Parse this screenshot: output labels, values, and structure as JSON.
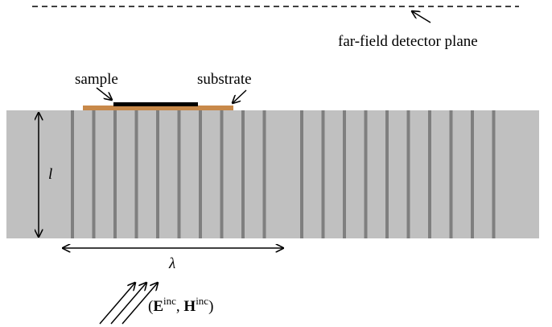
{
  "labels": {
    "detector": "far-field detector plane",
    "sample": "sample",
    "substrate": "substrate",
    "thickness": "l",
    "period": "λ"
  },
  "incident": {
    "open": "(",
    "e": "E",
    "e_sup": "inc",
    "comma": ", ",
    "h": "H",
    "h_sup": "inc",
    "close": ")"
  }
}
